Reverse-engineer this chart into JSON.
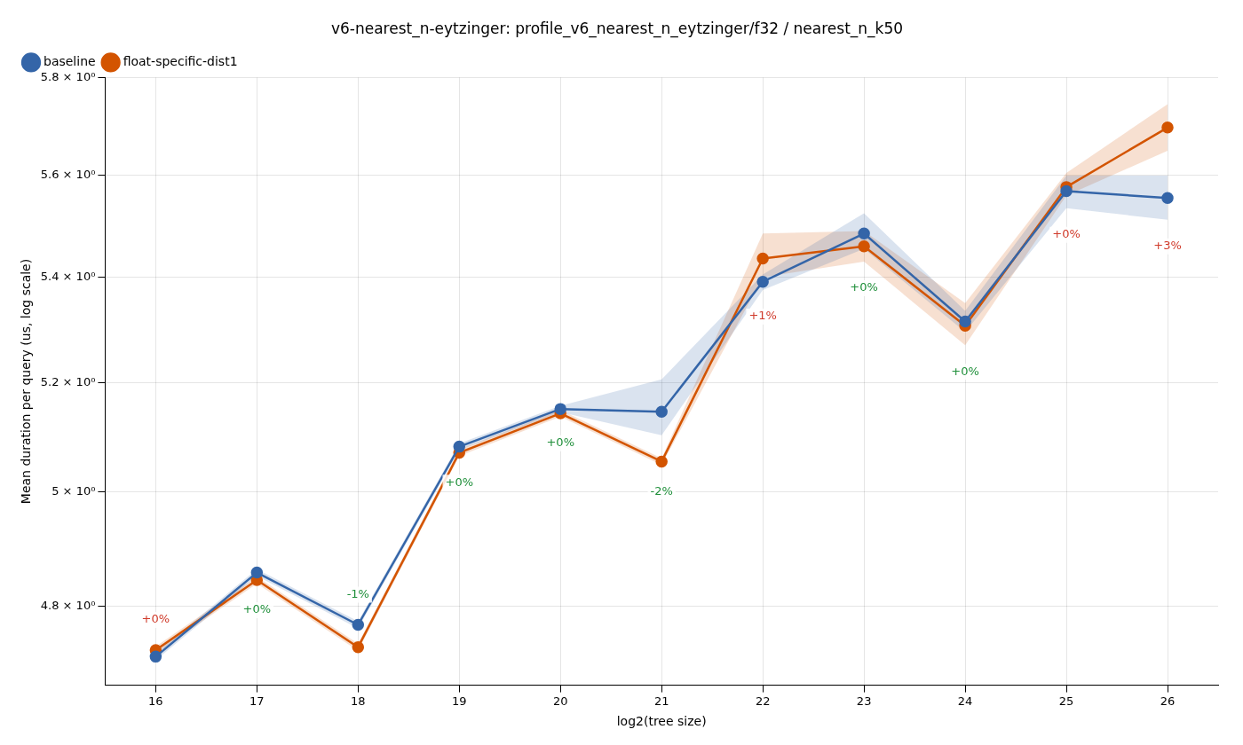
{
  "chart_data": {
    "type": "line",
    "title": "v6-nearest_n-eytzinger: profile_v6_nearest_n_eytzinger/f32 / nearest_n_k50",
    "xlabel": "log2(tree size)",
    "ylabel": "Mean duration per query (us, log scale)",
    "x": [
      16,
      17,
      18,
      19,
      20,
      21,
      22,
      23,
      24,
      25,
      26
    ],
    "series": [
      {
        "name": "baseline",
        "color": "#3465a8",
        "values": [
          4.714,
          4.858,
          4.768,
          5.082,
          5.151,
          5.146,
          5.391,
          5.485,
          5.315,
          5.569,
          5.555
        ],
        "lower": [
          4.708,
          4.852,
          4.762,
          5.076,
          5.145,
          5.103,
          5.375,
          5.455,
          5.295,
          5.535,
          5.512
        ],
        "upper": [
          4.72,
          4.864,
          4.774,
          5.088,
          5.157,
          5.206,
          5.405,
          5.525,
          5.335,
          5.6,
          5.6
        ]
      },
      {
        "name": "float-specific-dist1",
        "color": "#d35400",
        "values": [
          4.725,
          4.845,
          4.73,
          5.071,
          5.143,
          5.055,
          5.436,
          5.46,
          5.307,
          5.577,
          5.697
        ],
        "lower": [
          4.719,
          4.839,
          4.724,
          5.065,
          5.137,
          5.049,
          5.4,
          5.43,
          5.27,
          5.56,
          5.65
        ],
        "upper": [
          4.731,
          4.851,
          4.736,
          5.077,
          5.149,
          5.061,
          5.485,
          5.49,
          5.35,
          5.605,
          5.745
        ]
      }
    ],
    "annotations": [
      "+0%",
      "+0%",
      "-1%",
      "+0%",
      "+0%",
      "-2%",
      "+1%",
      "+0%",
      "+0%",
      "+0%",
      "+3%"
    ],
    "xlim": [
      15.5,
      26.5
    ],
    "xticks": [
      16,
      17,
      18,
      19,
      20,
      21,
      22,
      23,
      24,
      25,
      26
    ],
    "ylim": [
      4.666,
      5.8
    ],
    "yticks": [
      {
        "value": 4.8,
        "label": "4.8 × 10⁰"
      },
      {
        "value": 5,
        "label": "5 × 10⁰"
      },
      {
        "value": 5.2,
        "label": "5.2 × 10⁰"
      },
      {
        "value": 5.4,
        "label": "5.4 × 10⁰"
      },
      {
        "value": 5.6,
        "label": "5.6 × 10⁰"
      },
      {
        "value": 5.8,
        "label": "5.8 × 10⁰"
      }
    ],
    "log": true,
    "grid": true,
    "legend": "top left",
    "marker": "circle"
  }
}
